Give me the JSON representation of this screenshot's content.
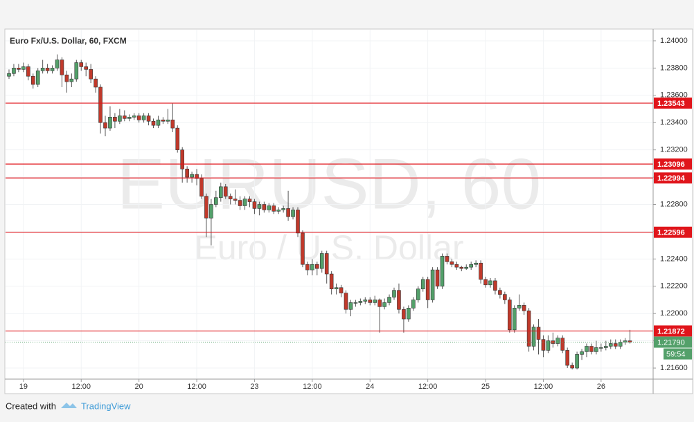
{
  "chart_data": {
    "type": "candlestick",
    "title": "Euro Fx/U.S. Dollar, 60, FXCM",
    "watermark": "EURUSD, 60",
    "watermark_subtitle": "Euro / U.S. Dollar",
    "up_color": "#53a06a",
    "down_color": "#c0392b",
    "level_color": "#e0151b",
    "grid": true,
    "ylim": [
      1.21519,
      1.24081
    ],
    "yticks": [
      {
        "value": 1.216,
        "label": "1.21600"
      },
      {
        "value": 1.218,
        "label": "1.21800"
      },
      {
        "value": 1.22,
        "label": "1.22000"
      },
      {
        "value": 1.222,
        "label": "1.22200"
      },
      {
        "value": 1.224,
        "label": "1.22400"
      },
      {
        "value": 1.226,
        "label": "1.22600"
      },
      {
        "value": 1.228,
        "label": "1.22800"
      },
      {
        "value": 1.23,
        "label": "1.23000"
      },
      {
        "value": 1.232,
        "label": "1.23200"
      },
      {
        "value": 1.234,
        "label": "1.23400"
      },
      {
        "value": 1.236,
        "label": "1.23600"
      },
      {
        "value": 1.238,
        "label": "1.23800"
      },
      {
        "value": 1.24,
        "label": "1.24000"
      }
    ],
    "categories": [
      null,
      null,
      null,
      "19",
      null,
      null,
      null,
      null,
      null,
      null,
      null,
      null,
      null,
      null,
      null,
      "12:00",
      null,
      null,
      null,
      null,
      null,
      null,
      null,
      null,
      null,
      null,
      null,
      "20",
      null,
      null,
      null,
      null,
      null,
      null,
      null,
      null,
      null,
      null,
      null,
      "12:00",
      null,
      null,
      null,
      null,
      null,
      null,
      null,
      null,
      null,
      null,
      null,
      "23",
      null,
      null,
      null,
      null,
      null,
      null,
      null,
      null,
      null,
      null,
      null,
      "12:00",
      null,
      null,
      null,
      null,
      null,
      null,
      null,
      null,
      null,
      null,
      null,
      "24",
      null,
      null,
      null,
      null,
      null,
      null,
      null,
      null,
      null,
      null,
      null,
      "12:00",
      null,
      null,
      null,
      null,
      null,
      null,
      null,
      null,
      null,
      null,
      null,
      "25",
      null,
      null,
      null,
      null,
      null,
      null,
      null,
      null,
      null,
      null,
      null,
      "12:00",
      null,
      null,
      null,
      null,
      null,
      null,
      null,
      null,
      null,
      null,
      null,
      "26",
      null,
      null,
      null,
      null,
      null,
      null
    ],
    "ohlc": [
      [
        1.2374,
        1.2379,
        1.2372,
        1.2376
      ],
      [
        1.2376,
        1.2383,
        1.2374,
        1.238
      ],
      [
        1.238,
        1.2383,
        1.2377,
        1.2379
      ],
      [
        1.2379,
        1.2384,
        1.2377,
        1.2381
      ],
      [
        1.2381,
        1.2383,
        1.2371,
        1.2374
      ],
      [
        1.2374,
        1.2376,
        1.2365,
        1.2368
      ],
      [
        1.2368,
        1.238,
        1.2366,
        1.2378
      ],
      [
        1.2378,
        1.2386,
        1.2376,
        1.238
      ],
      [
        1.238,
        1.2383,
        1.2376,
        1.2378
      ],
      [
        1.2378,
        1.2382,
        1.2376,
        1.238
      ],
      [
        1.238,
        1.239,
        1.2378,
        1.2386
      ],
      [
        1.2386,
        1.2388,
        1.2366,
        1.2375
      ],
      [
        1.2375,
        1.2378,
        1.2362,
        1.237
      ],
      [
        1.237,
        1.2376,
        1.2366,
        1.2372
      ],
      [
        1.2372,
        1.2386,
        1.237,
        1.2384
      ],
      [
        1.2384,
        1.2386,
        1.2378,
        1.2381
      ],
      [
        1.2381,
        1.2384,
        1.2374,
        1.2379
      ],
      [
        1.2379,
        1.2383,
        1.2369,
        1.2372
      ],
      [
        1.2372,
        1.2374,
        1.2362,
        1.2366
      ],
      [
        1.2366,
        1.2368,
        1.2332,
        1.234
      ],
      [
        1.234,
        1.2345,
        1.233,
        1.2336
      ],
      [
        1.2336,
        1.2352,
        1.2334,
        1.2344
      ],
      [
        1.2344,
        1.2347,
        1.2336,
        1.2341
      ],
      [
        1.2341,
        1.235,
        1.2339,
        1.2345
      ],
      [
        1.2345,
        1.2349,
        1.2341,
        1.2343
      ],
      [
        1.2343,
        1.2346,
        1.2341,
        1.2344
      ],
      [
        1.2344,
        1.2347,
        1.2342,
        1.2345
      ],
      [
        1.2345,
        1.2347,
        1.234,
        1.2342
      ],
      [
        1.2342,
        1.2347,
        1.234,
        1.2345
      ],
      [
        1.2345,
        1.2347,
        1.2338,
        1.2341
      ],
      [
        1.2341,
        1.2343,
        1.2336,
        1.2338
      ],
      [
        1.2338,
        1.2345,
        1.2336,
        1.2342
      ],
      [
        1.2342,
        1.2344,
        1.2339,
        1.2341
      ],
      [
        1.2341,
        1.235,
        1.2339,
        1.2342
      ],
      [
        1.2342,
        1.2354,
        1.2333,
        1.2336
      ],
      [
        1.2336,
        1.2338,
        1.2318,
        1.232
      ],
      [
        1.232,
        1.2322,
        1.2296,
        1.2306
      ],
      [
        1.2306,
        1.2308,
        1.2296,
        1.23
      ],
      [
        1.23,
        1.2304,
        1.2296,
        1.2302
      ],
      [
        1.2302,
        1.2306,
        1.2294,
        1.2299
      ],
      [
        1.2299,
        1.2302,
        1.2284,
        1.2286
      ],
      [
        1.2286,
        1.2288,
        1.2256,
        1.227
      ],
      [
        1.227,
        1.2284,
        1.225,
        1.228
      ],
      [
        1.228,
        1.229,
        1.2278,
        1.2285
      ],
      [
        1.2285,
        1.2296,
        1.2282,
        1.2293
      ],
      [
        1.2293,
        1.2295,
        1.2284,
        1.2286
      ],
      [
        1.2286,
        1.2288,
        1.228,
        1.2284
      ],
      [
        1.2284,
        1.2291,
        1.228,
        1.2283
      ],
      [
        1.2283,
        1.2286,
        1.2276,
        1.2279
      ],
      [
        1.2279,
        1.2286,
        1.2276,
        1.2284
      ],
      [
        1.2284,
        1.2286,
        1.2278,
        1.2282
      ],
      [
        1.2282,
        1.2284,
        1.2273,
        1.2277
      ],
      [
        1.2277,
        1.2282,
        1.2272,
        1.228
      ],
      [
        1.228,
        1.2282,
        1.2274,
        1.2276
      ],
      [
        1.2276,
        1.2281,
        1.2274,
        1.2279
      ],
      [
        1.2279,
        1.2281,
        1.2273,
        1.2275
      ],
      [
        1.2275,
        1.2278,
        1.2273,
        1.2276
      ],
      [
        1.2276,
        1.2279,
        1.2274,
        1.2277
      ],
      [
        1.2277,
        1.229,
        1.2268,
        1.2271
      ],
      [
        1.2271,
        1.2278,
        1.2269,
        1.2276
      ],
      [
        1.2276,
        1.2278,
        1.2256,
        1.2259
      ],
      [
        1.2259,
        1.2261,
        1.2234,
        1.2236
      ],
      [
        1.2236,
        1.2238,
        1.2228,
        1.2232
      ],
      [
        1.2232,
        1.224,
        1.2228,
        1.2236
      ],
      [
        1.2236,
        1.2238,
        1.2228,
        1.2233
      ],
      [
        1.2233,
        1.2246,
        1.223,
        1.2244
      ],
      [
        1.2244,
        1.2246,
        1.2222,
        1.2229
      ],
      [
        1.2229,
        1.2231,
        1.2214,
        1.2218
      ],
      [
        1.2218,
        1.2222,
        1.2214,
        1.2219
      ],
      [
        1.2219,
        1.2221,
        1.2212,
        1.2215
      ],
      [
        1.2215,
        1.2217,
        1.22,
        1.2203
      ],
      [
        1.2203,
        1.221,
        1.2198,
        1.2208
      ],
      [
        1.2208,
        1.221,
        1.2205,
        1.2208
      ],
      [
        1.2208,
        1.2211,
        1.2206,
        1.2209
      ],
      [
        1.2209,
        1.2212,
        1.2207,
        1.221
      ],
      [
        1.221,
        1.2212,
        1.2206,
        1.2208
      ],
      [
        1.2208,
        1.2213,
        1.2206,
        1.221
      ],
      [
        1.221,
        1.2211,
        1.2186,
        1.2205
      ],
      [
        1.2205,
        1.2211,
        1.2203,
        1.2208
      ],
      [
        1.2208,
        1.2214,
        1.2206,
        1.2212
      ],
      [
        1.2212,
        1.2219,
        1.221,
        1.2217
      ],
      [
        1.2217,
        1.2222,
        1.22,
        1.2203
      ],
      [
        1.2203,
        1.2205,
        1.2186,
        1.2196
      ],
      [
        1.2196,
        1.2206,
        1.2194,
        1.2204
      ],
      [
        1.2204,
        1.2212,
        1.2202,
        1.221
      ],
      [
        1.221,
        1.222,
        1.2208,
        1.2218
      ],
      [
        1.2218,
        1.2227,
        1.2216,
        1.2225
      ],
      [
        1.2225,
        1.2227,
        1.2204,
        1.221
      ],
      [
        1.221,
        1.2234,
        1.2208,
        1.2232
      ],
      [
        1.2232,
        1.2234,
        1.2218,
        1.222
      ],
      [
        1.222,
        1.2244,
        1.2218,
        1.2242
      ],
      [
        1.2242,
        1.2244,
        1.2236,
        1.2238
      ],
      [
        1.2238,
        1.224,
        1.2234,
        1.2236
      ],
      [
        1.2236,
        1.2238,
        1.2232,
        1.2234
      ],
      [
        1.2234,
        1.2235,
        1.2231,
        1.2233
      ],
      [
        1.2233,
        1.2236,
        1.2232,
        1.2234
      ],
      [
        1.2234,
        1.2238,
        1.2232,
        1.2236
      ],
      [
        1.2236,
        1.2239,
        1.2234,
        1.2237
      ],
      [
        1.2237,
        1.2239,
        1.2222,
        1.2225
      ],
      [
        1.2225,
        1.2227,
        1.2219,
        1.2221
      ],
      [
        1.2221,
        1.2226,
        1.2219,
        1.2224
      ],
      [
        1.2224,
        1.2226,
        1.2214,
        1.2217
      ],
      [
        1.2217,
        1.2219,
        1.2211,
        1.2214
      ],
      [
        1.2214,
        1.2216,
        1.2207,
        1.221
      ],
      [
        1.221,
        1.2212,
        1.2186,
        1.2188
      ],
      [
        1.2188,
        1.2206,
        1.2186,
        1.2204
      ],
      [
        1.2204,
        1.2214,
        1.2202,
        1.2206
      ],
      [
        1.2206,
        1.2208,
        1.2199,
        1.2202
      ],
      [
        1.2202,
        1.2204,
        1.2172,
        1.2176
      ],
      [
        1.2176,
        1.2192,
        1.2173,
        1.219
      ],
      [
        1.219,
        1.2196,
        1.217,
        1.2181
      ],
      [
        1.2181,
        1.2184,
        1.2168,
        1.2173
      ],
      [
        1.2173,
        1.2184,
        1.2171,
        1.218
      ],
      [
        1.218,
        1.2186,
        1.2175,
        1.2178
      ],
      [
        1.2178,
        1.2184,
        1.2176,
        1.2182
      ],
      [
        1.2182,
        1.2184,
        1.2171,
        1.2173
      ],
      [
        1.2173,
        1.2175,
        1.216,
        1.2162
      ],
      [
        1.2162,
        1.2164,
        1.2159,
        1.216
      ],
      [
        1.216,
        1.2172,
        1.2159,
        1.217
      ],
      [
        1.217,
        1.2174,
        1.2166,
        1.2172
      ],
      [
        1.2172,
        1.2178,
        1.2168,
        1.2176
      ],
      [
        1.2176,
        1.2178,
        1.217,
        1.2172
      ],
      [
        1.2172,
        1.218,
        1.217,
        1.2175
      ],
      [
        1.2175,
        1.2178,
        1.2172,
        1.2175
      ],
      [
        1.2175,
        1.218,
        1.2173,
        1.2176
      ],
      [
        1.2176,
        1.2181,
        1.2174,
        1.2178
      ],
      [
        1.2178,
        1.2181,
        1.2174,
        1.2176
      ],
      [
        1.2176,
        1.2181,
        1.2174,
        1.2179
      ],
      [
        1.2179,
        1.2182,
        1.2177,
        1.218
      ],
      [
        1.218,
        1.2188,
        1.2178,
        1.2179
      ]
    ],
    "levels": [
      {
        "value": 1.23543,
        "label": "1.23543"
      },
      {
        "value": 1.23096,
        "label": "1.23096"
      },
      {
        "value": 1.22994,
        "label": "1.22994"
      },
      {
        "value": 1.22596,
        "label": "1.22596"
      },
      {
        "value": 1.21872,
        "label": "1.21872"
      }
    ],
    "last_price": {
      "value": 1.2179,
      "label": "1.21790"
    },
    "countdown": "59:54"
  },
  "footer": {
    "created_with": "Created with",
    "brand": "TradingView"
  }
}
